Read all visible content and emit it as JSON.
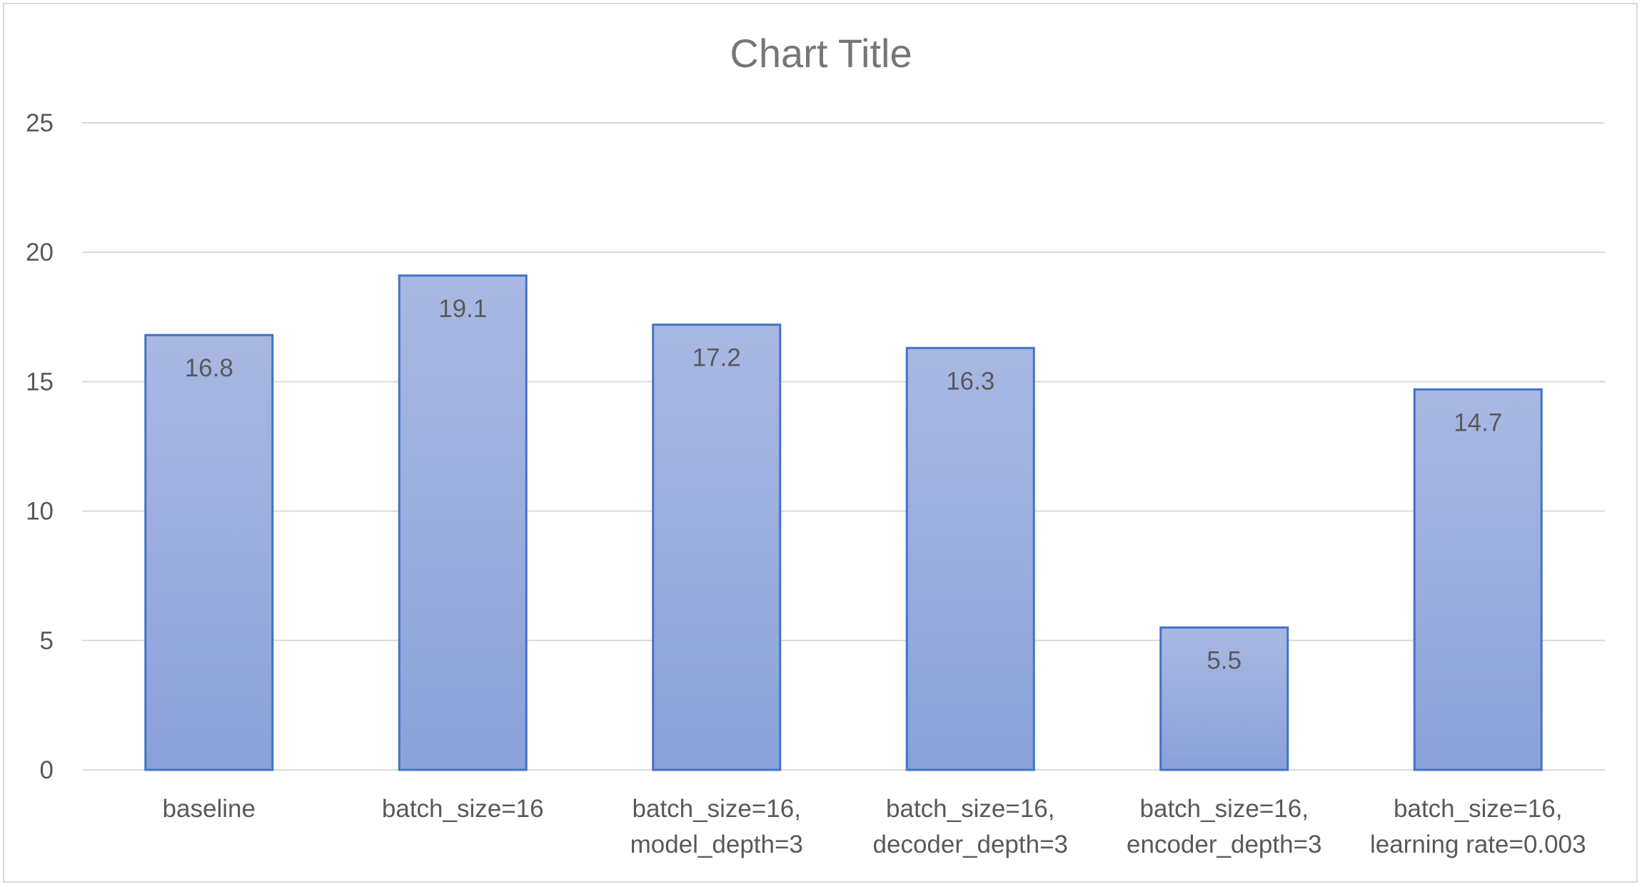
{
  "chart_data": {
    "type": "bar",
    "title": "Chart Title",
    "xlabel": "",
    "ylabel": "",
    "categories": [
      [
        "baseline"
      ],
      [
        "batch_size=16"
      ],
      [
        "batch_size=16,",
        "model_depth=3"
      ],
      [
        "batch_size=16,",
        "decoder_depth=3"
      ],
      [
        "batch_size=16,",
        "encoder_depth=3"
      ],
      [
        "batch_size=16,",
        "learning rate=0.003"
      ]
    ],
    "values": [
      16.8,
      19.1,
      17.2,
      16.3,
      5.5,
      14.7
    ],
    "data_labels": [
      "16.8",
      "19.1",
      "17.2",
      "16.3",
      "5.5",
      "14.7"
    ],
    "ylim": [
      0,
      25
    ],
    "yticks": [
      0,
      5,
      10,
      15,
      20,
      25
    ],
    "grid": true,
    "legend": "none",
    "colors": {
      "bar_fill_top": "#a9b8e3",
      "bar_fill_bottom": "#8aa1d9",
      "bar_border": "#4472c4",
      "grid": "#d9d9d9",
      "text": "#595959",
      "title": "#767676"
    }
  }
}
